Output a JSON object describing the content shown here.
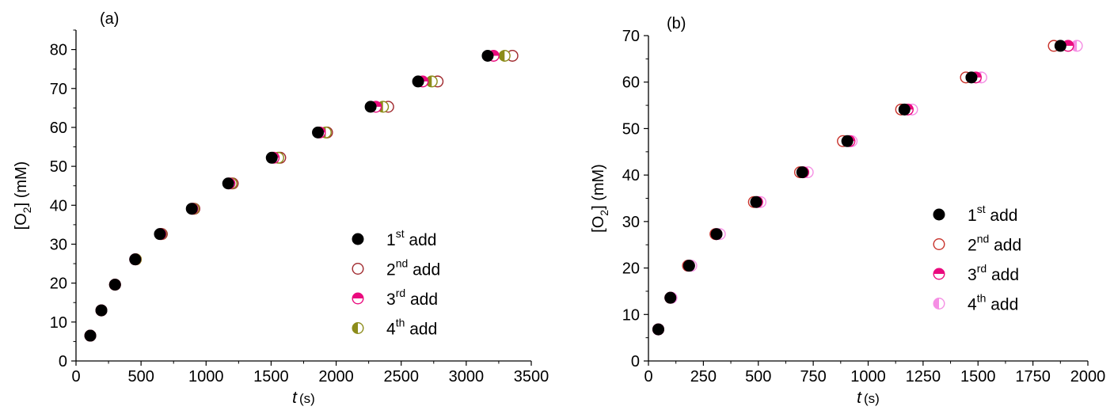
{
  "chart_data": [
    {
      "type": "scatter",
      "panel_label": "(a)",
      "xlabel": "t",
      "xlabel_unit": "(s)",
      "ylabel": "[O",
      "ylabel_sub": "2",
      "ylabel_unit": "] (mM)",
      "xlim": [
        0,
        3500
      ],
      "ylim": [
        0,
        85
      ],
      "xticks": [
        0,
        500,
        1000,
        1500,
        2000,
        2500,
        3000,
        3500
      ],
      "yticks": [
        0,
        10,
        20,
        30,
        40,
        50,
        60,
        70,
        80
      ],
      "legend_position": "bottom-right",
      "series": [
        {
          "name": "1st add",
          "base": "1",
          "sup": "st",
          "rest": " add",
          "style": "filled",
          "color": "#000000",
          "x": [
            110,
            195,
            300,
            455,
            645,
            890,
            1170,
            1505,
            1860,
            2265,
            2630,
            3165
          ],
          "y": [
            6.5,
            13.0,
            19.6,
            26.1,
            32.6,
            39.1,
            45.6,
            52.2,
            58.7,
            65.3,
            71.8,
            78.4
          ]
        },
        {
          "name": "2nd add",
          "base": "2",
          "sup": "nd",
          "rest": " add",
          "style": "open",
          "color": "#a0282d",
          "x": [
            110,
            195,
            300,
            460,
            660,
            910,
            1205,
            1570,
            1930,
            2400,
            2780,
            3355
          ],
          "y": [
            6.5,
            13.0,
            19.6,
            26.1,
            32.6,
            39.1,
            45.6,
            52.2,
            58.7,
            65.3,
            71.8,
            78.4
          ]
        },
        {
          "name": "3rd add",
          "base": "3",
          "sup": "rd",
          "rest": " add",
          "style": "top-half",
          "color": "#ea0a7e",
          "x": [
            110,
            195,
            300,
            455,
            650,
            895,
            1180,
            1520,
            1875,
            2305,
            2665,
            3210
          ],
          "y": [
            6.5,
            13.0,
            19.6,
            26.1,
            32.6,
            39.1,
            45.6,
            52.2,
            58.7,
            65.3,
            71.8,
            78.4
          ]
        },
        {
          "name": "4th add",
          "base": "4",
          "sup": "th",
          "rest": " add",
          "style": "left-half",
          "color": "#8c8c1a",
          "x": [
            110,
            195,
            300,
            460,
            655,
            905,
            1195,
            1555,
            1920,
            2360,
            2735,
            3295
          ],
          "y": [
            6.5,
            13.0,
            19.6,
            26.1,
            32.6,
            39.1,
            45.6,
            52.2,
            58.7,
            65.3,
            71.8,
            78.4
          ]
        }
      ]
    },
    {
      "type": "scatter",
      "panel_label": "(b)",
      "xlabel": "t",
      "xlabel_unit": "(s)",
      "ylabel": "[O",
      "ylabel_sub": "2",
      "ylabel_unit": "] (mM)",
      "xlim": [
        0,
        2000
      ],
      "ylim": [
        0,
        70
      ],
      "xticks": [
        0,
        250,
        500,
        750,
        1000,
        1250,
        1500,
        1750,
        2000
      ],
      "yticks": [
        0,
        10,
        20,
        30,
        40,
        50,
        60,
        70
      ],
      "legend_position": "center-right",
      "series": [
        {
          "name": "1st add",
          "base": "1",
          "sup": "st",
          "rest": " add",
          "style": "filled",
          "color": "#000000",
          "x": [
            45,
            100,
            185,
            310,
            490,
            700,
            905,
            1165,
            1470,
            1875
          ],
          "y": [
            6.8,
            13.6,
            20.5,
            27.3,
            34.2,
            40.6,
            47.3,
            54.1,
            61.0,
            67.8
          ]
        },
        {
          "name": "2nd add",
          "base": "2",
          "sup": "nd",
          "rest": " add",
          "style": "open",
          "color": "#c8322b",
          "x": [
            45,
            100,
            180,
            305,
            480,
            690,
            885,
            1150,
            1445,
            1845
          ],
          "y": [
            6.8,
            13.6,
            20.5,
            27.3,
            34.2,
            40.6,
            47.3,
            54.1,
            61.0,
            67.8
          ]
        },
        {
          "name": "3rd add",
          "base": "3",
          "sup": "rd",
          "rest": " add",
          "style": "top-half",
          "color": "#ea0a7e",
          "x": [
            45,
            100,
            185,
            310,
            495,
            705,
            915,
            1180,
            1490,
            1910
          ],
          "y": [
            6.8,
            13.6,
            20.5,
            27.3,
            34.2,
            40.6,
            47.3,
            54.1,
            61.0,
            67.8
          ]
        },
        {
          "name": "4th add",
          "base": "4",
          "sup": "th",
          "rest": " add",
          "style": "left-half",
          "color": "#f58ee4",
          "x": [
            45,
            105,
            195,
            325,
            510,
            725,
            925,
            1200,
            1515,
            1950
          ],
          "y": [
            6.8,
            13.6,
            20.5,
            27.3,
            34.2,
            40.6,
            47.3,
            54.1,
            61.0,
            67.8
          ]
        }
      ]
    }
  ]
}
